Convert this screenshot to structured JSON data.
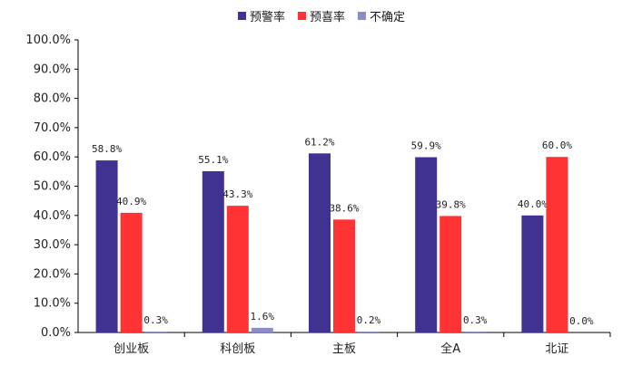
{
  "chart_data": {
    "type": "bar",
    "categories": [
      "创业板",
      "科创板",
      "主板",
      "全A",
      "北证"
    ],
    "series": [
      {
        "name": "预警率",
        "values": [
          58.8,
          55.1,
          61.2,
          59.9,
          40.0
        ],
        "labels": [
          "58.8%",
          "55.1%",
          "61.2%",
          "59.9%",
          "40.0%"
        ],
        "color": "#3f3290"
      },
      {
        "name": "预喜率",
        "values": [
          40.9,
          43.3,
          38.6,
          39.8,
          60.0
        ],
        "labels": [
          "40.9%",
          "43.3%",
          "38.6%",
          "39.8%",
          "60.0%"
        ],
        "color": "#ff3333"
      },
      {
        "name": "不确定",
        "values": [
          0.3,
          1.6,
          0.2,
          0.3,
          0.0
        ],
        "labels": [
          "0.3%",
          "1.6%",
          "0.2%",
          "0.3%",
          "0.0%"
        ],
        "color": "#8c8cc8"
      }
    ],
    "yticks": [
      "0.0%",
      "10.0%",
      "20.0%",
      "30.0%",
      "40.0%",
      "50.0%",
      "60.0%",
      "70.0%",
      "80.0%",
      "90.0%",
      "100.0%"
    ],
    "ylim": [
      0,
      100
    ],
    "grid": false,
    "legend_position": "top-center"
  }
}
